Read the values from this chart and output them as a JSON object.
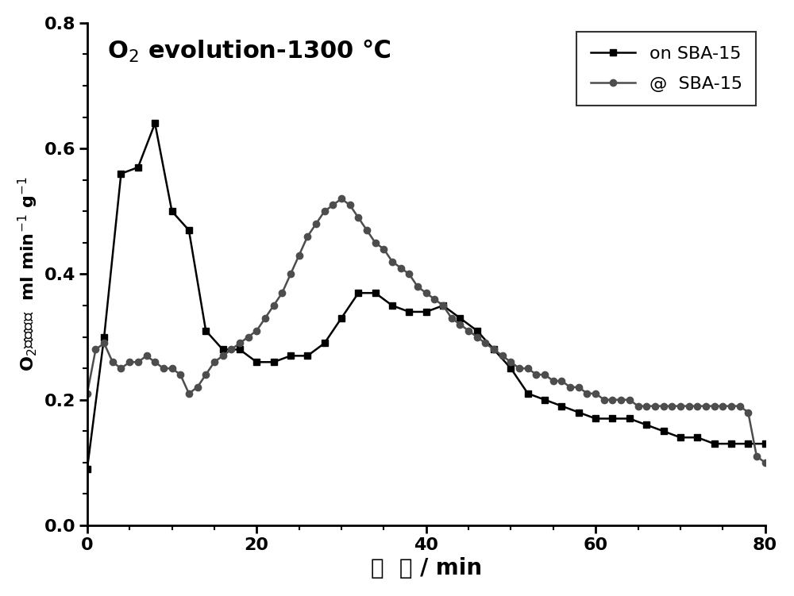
{
  "xlim": [
    0,
    80
  ],
  "ylim": [
    0.0,
    0.8
  ],
  "yticks": [
    0.0,
    0.2,
    0.4,
    0.6,
    0.8
  ],
  "xticks": [
    0,
    20,
    40,
    60,
    80
  ],
  "series1_label": "on SBA-15",
  "series2_label": "@  SBA-15",
  "series1_color": "#000000",
  "series2_color": "#4d4d4d",
  "series1_x": [
    0,
    2,
    4,
    6,
    8,
    10,
    12,
    14,
    16,
    18,
    20,
    22,
    24,
    26,
    28,
    30,
    32,
    34,
    36,
    38,
    40,
    42,
    44,
    46,
    48,
    50,
    52,
    54,
    56,
    58,
    60,
    62,
    64,
    66,
    68,
    70,
    72,
    74,
    76,
    78,
    80
  ],
  "series1_y": [
    0.09,
    0.3,
    0.56,
    0.57,
    0.64,
    0.5,
    0.47,
    0.31,
    0.28,
    0.28,
    0.26,
    0.26,
    0.27,
    0.27,
    0.29,
    0.33,
    0.37,
    0.37,
    0.35,
    0.34,
    0.34,
    0.35,
    0.33,
    0.31,
    0.28,
    0.25,
    0.21,
    0.2,
    0.19,
    0.18,
    0.17,
    0.17,
    0.17,
    0.16,
    0.15,
    0.14,
    0.14,
    0.13,
    0.13,
    0.13,
    0.13
  ],
  "series2_x": [
    0,
    1,
    2,
    3,
    4,
    5,
    6,
    7,
    8,
    9,
    10,
    11,
    12,
    13,
    14,
    15,
    16,
    17,
    18,
    19,
    20,
    21,
    22,
    23,
    24,
    25,
    26,
    27,
    28,
    29,
    30,
    31,
    32,
    33,
    34,
    35,
    36,
    37,
    38,
    39,
    40,
    41,
    42,
    43,
    44,
    45,
    46,
    47,
    48,
    49,
    50,
    51,
    52,
    53,
    54,
    55,
    56,
    57,
    58,
    59,
    60,
    61,
    62,
    63,
    64,
    65,
    66,
    67,
    68,
    69,
    70,
    71,
    72,
    73,
    74,
    75,
    76,
    77,
    78,
    79,
    80
  ],
  "series2_y": [
    0.21,
    0.28,
    0.29,
    0.26,
    0.25,
    0.26,
    0.26,
    0.27,
    0.26,
    0.25,
    0.25,
    0.24,
    0.21,
    0.22,
    0.24,
    0.26,
    0.27,
    0.28,
    0.29,
    0.3,
    0.31,
    0.33,
    0.35,
    0.37,
    0.4,
    0.43,
    0.46,
    0.48,
    0.5,
    0.51,
    0.52,
    0.51,
    0.49,
    0.47,
    0.45,
    0.44,
    0.42,
    0.41,
    0.4,
    0.38,
    0.37,
    0.36,
    0.35,
    0.33,
    0.32,
    0.31,
    0.3,
    0.29,
    0.28,
    0.27,
    0.26,
    0.25,
    0.25,
    0.24,
    0.24,
    0.23,
    0.23,
    0.22,
    0.22,
    0.21,
    0.21,
    0.2,
    0.2,
    0.2,
    0.2,
    0.19,
    0.19,
    0.19,
    0.19,
    0.19,
    0.19,
    0.19,
    0.19,
    0.19,
    0.19,
    0.19,
    0.19,
    0.19,
    0.18,
    0.11,
    0.1
  ],
  "background_color": "#ffffff"
}
